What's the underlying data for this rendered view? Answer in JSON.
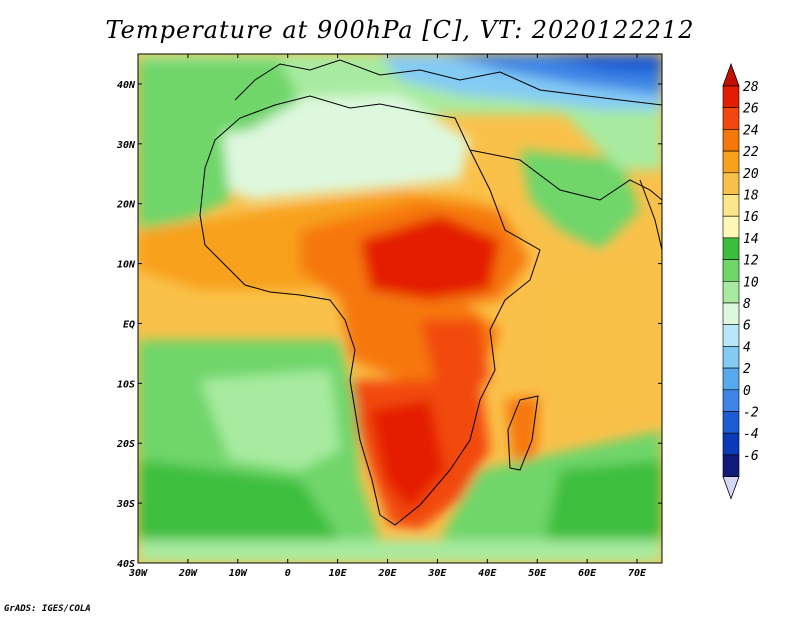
{
  "title": "Temperature at 900hPa [C], VT: 2020122212",
  "footer": "GrADS: IGES/COLA",
  "map": {
    "lon_range": [
      -30,
      75
    ],
    "lat_range": [
      -40,
      45
    ],
    "lon_ticks": [
      "30W",
      "20W",
      "10W",
      "0",
      "10E",
      "20E",
      "30E",
      "40E",
      "50E",
      "60E",
      "70E"
    ],
    "lat_ticks": [
      "40N",
      "30N",
      "20N",
      "10N",
      "EQ",
      "10S",
      "20S",
      "30S",
      "40S"
    ]
  },
  "colorbar": {
    "labels": [
      "28",
      "26",
      "24",
      "22",
      "20",
      "18",
      "16",
      "14",
      "12",
      "10",
      "8",
      "6",
      "4",
      "2",
      "0",
      "-2",
      "-4",
      "-6"
    ],
    "colors": [
      "#e41c00",
      "#f24810",
      "#f6780a",
      "#f8a11c",
      "#fac14a",
      "#fce68a",
      "#fef8b4",
      "#3cbe3c",
      "#6fd66a",
      "#a8eba0",
      "#def8de",
      "#b8e8f8",
      "#84cbf4",
      "#58aaee",
      "#3c84e6",
      "#1e5cd4",
      "#0a3ab8",
      "#101a78"
    ],
    "top_arrow_color": "#c41000",
    "bottom_arrow_color": "#d6d6f6"
  }
}
